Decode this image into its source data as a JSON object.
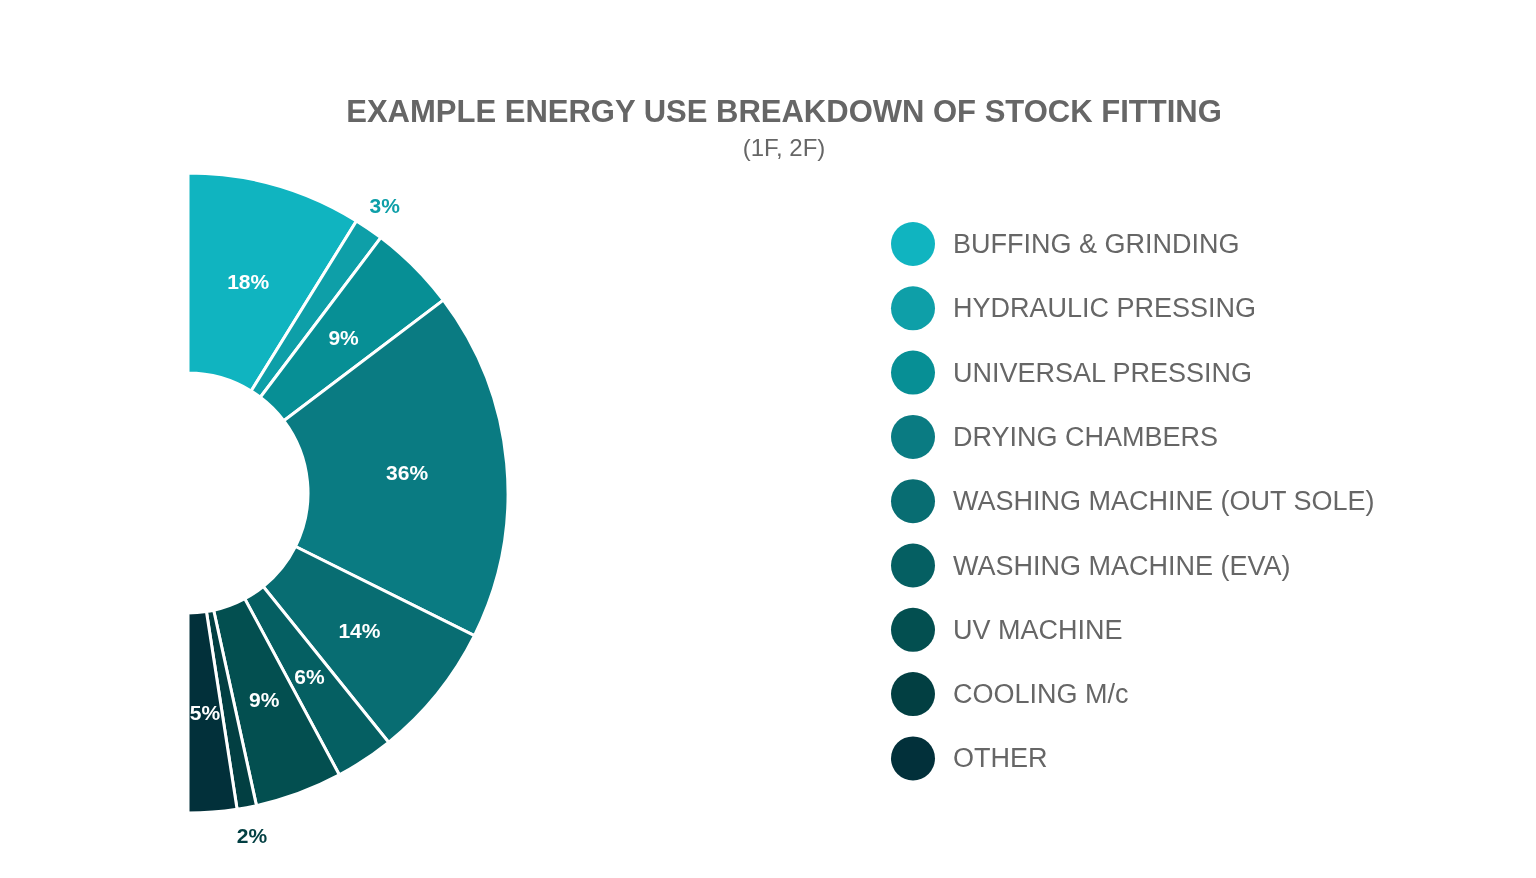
{
  "chart_data": {
    "type": "donut",
    "title": "EXAMPLE ENERGY USE BREAKDOWN OF STOCK FITTING",
    "subtitle": "(1F, 2F)",
    "categories": [
      "BUFFING & GRINDING",
      "HYDRAULIC PRESSING",
      "UNIVERSAL PRESSING",
      "DRYING CHAMBERS",
      "WASHING MACHINE (OUT SOLE)",
      "WASHING MACHINE (EVA)",
      "UV MACHINE",
      "COOLING M/c",
      "OTHER"
    ],
    "values": [
      18,
      3,
      9,
      36,
      14,
      6,
      9,
      2,
      5
    ],
    "colors": [
      "#10b4c0",
      "#0e9fa8",
      "#078f95",
      "#0a7b82",
      "#086d72",
      "#055f62",
      "#034f50",
      "#023f42",
      "#02303a"
    ],
    "value_labels": [
      "18%",
      "3%",
      "9%",
      "36%",
      "14%",
      "6%",
      "9%",
      "2%",
      "5%"
    ],
    "legend": "right"
  }
}
